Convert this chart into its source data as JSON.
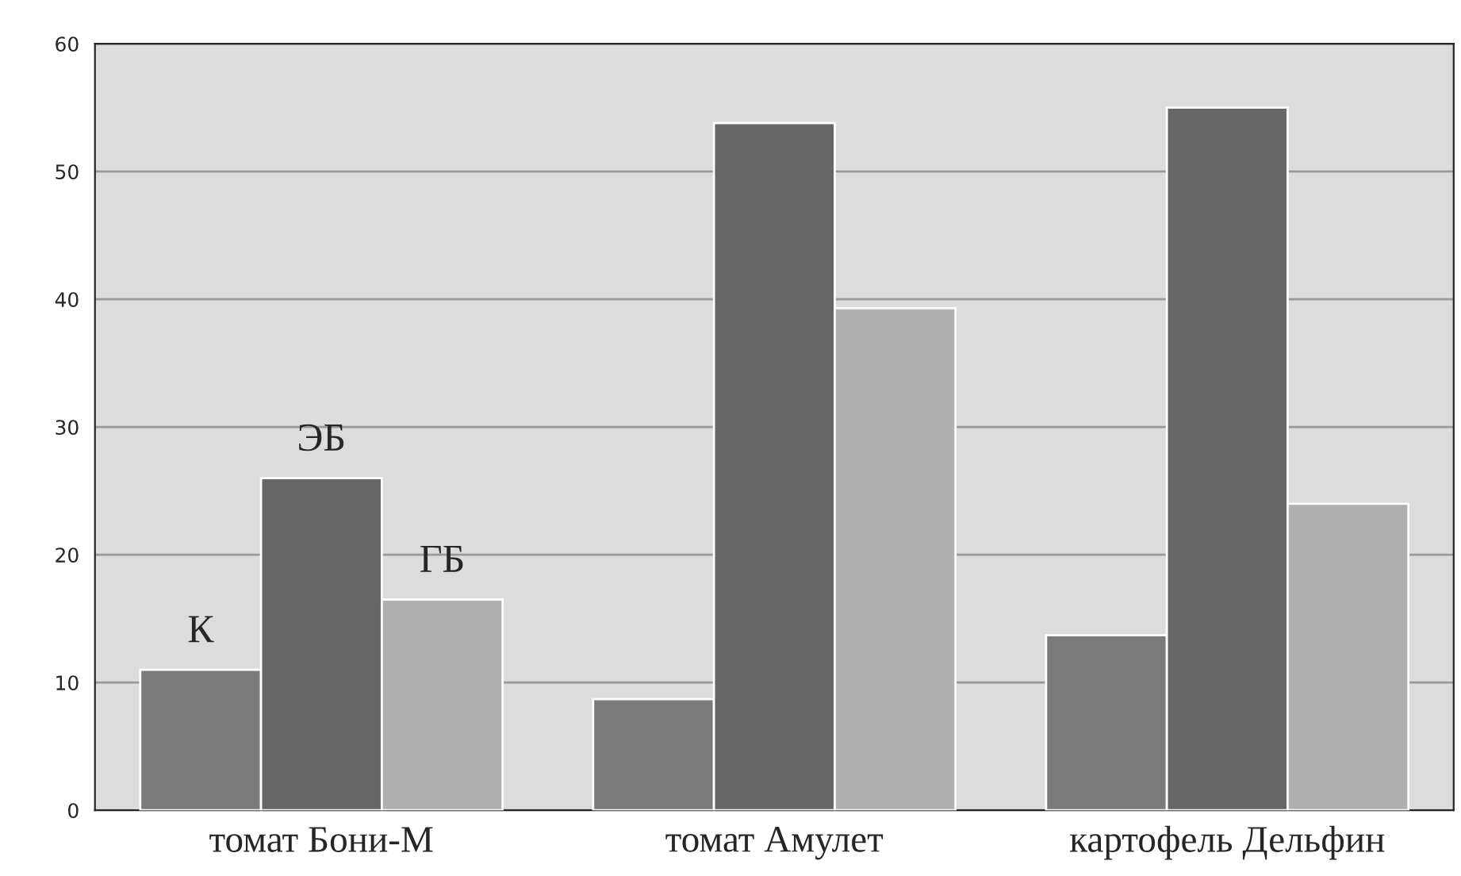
{
  "chart_data": {
    "type": "bar",
    "categories": [
      "томат Бони-М",
      "томат Амулет",
      "картофель Дельфин"
    ],
    "series": [
      {
        "name": "К",
        "color": "#7a7a7a",
        "values": [
          11,
          8.7,
          13.7
        ]
      },
      {
        "name": "ЭБ",
        "color": "#666666",
        "values": [
          26,
          53.8,
          55
        ]
      },
      {
        "name": "ГБ",
        "color": "#b0b0b0",
        "values": [
          16.5,
          39.3,
          24
        ]
      }
    ],
    "ylim": [
      0,
      60
    ],
    "yticks": [
      0,
      10,
      20,
      30,
      40,
      50,
      60
    ],
    "grid": "y",
    "legend": false
  }
}
